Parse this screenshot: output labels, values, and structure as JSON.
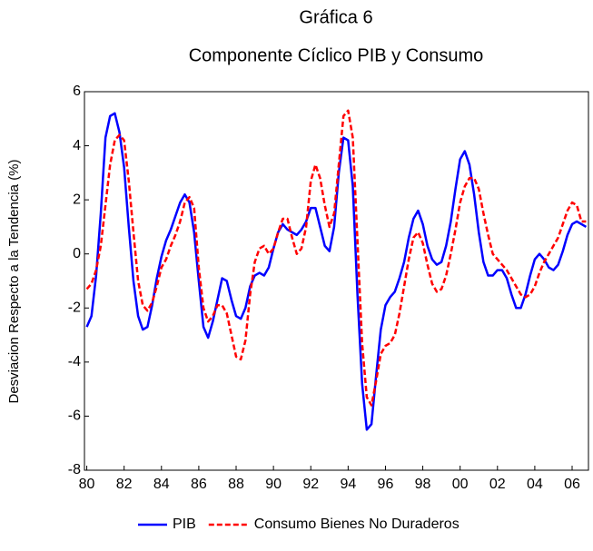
{
  "chart_data": {
    "type": "line",
    "title": "Gráfica 6",
    "subtitle": "Componente Cíclico PIB y Consumo",
    "y_label": "Desviacion Respecto a la Tendencia (%)",
    "categories": [
      "80",
      null,
      null,
      null,
      null,
      null,
      null,
      null,
      "82",
      null,
      null,
      null,
      null,
      null,
      null,
      null,
      "84",
      null,
      null,
      null,
      null,
      null,
      null,
      null,
      "86",
      null,
      null,
      null,
      null,
      null,
      null,
      null,
      "88",
      null,
      null,
      null,
      null,
      null,
      null,
      null,
      "90",
      null,
      null,
      null,
      null,
      null,
      null,
      null,
      "92",
      null,
      null,
      null,
      null,
      null,
      null,
      null,
      "94",
      null,
      null,
      null,
      null,
      null,
      null,
      null,
      "96",
      null,
      null,
      null,
      null,
      null,
      null,
      null,
      "98",
      null,
      null,
      null,
      null,
      null,
      null,
      null,
      "00",
      null,
      null,
      null,
      null,
      null,
      null,
      null,
      "02",
      null,
      null,
      null,
      null,
      null,
      null,
      null,
      "04",
      null,
      null,
      null,
      null,
      null,
      null,
      null,
      "06",
      null,
      null,
      null
    ],
    "series": [
      {
        "name": "PIB",
        "color": "#0000ff",
        "dash": false,
        "values": [
          -2.7,
          -2.3,
          -0.8,
          1.5,
          4.3,
          5.1,
          5.2,
          4.5,
          3.2,
          1.0,
          -1.0,
          -2.3,
          -2.8,
          -2.7,
          -1.9,
          -0.9,
          -0.1,
          0.5,
          0.9,
          1.4,
          1.9,
          2.2,
          1.9,
          0.8,
          -1.0,
          -2.7,
          -3.1,
          -2.5,
          -1.7,
          -0.9,
          -1.0,
          -1.7,
          -2.3,
          -2.4,
          -2.0,
          -1.2,
          -0.8,
          -0.7,
          -0.8,
          -0.5,
          0.2,
          0.8,
          1.1,
          0.9,
          0.8,
          0.7,
          0.9,
          1.2,
          1.7,
          1.7,
          1.0,
          0.3,
          0.1,
          1.0,
          3.0,
          4.3,
          4.2,
          2.5,
          -1.5,
          -4.8,
          -6.5,
          -6.3,
          -4.5,
          -2.8,
          -1.9,
          -1.6,
          -1.4,
          -0.9,
          -0.3,
          0.6,
          1.3,
          1.6,
          1.1,
          0.3,
          -0.2,
          -0.4,
          -0.3,
          0.3,
          1.2,
          2.4,
          3.5,
          3.8,
          3.3,
          2.2,
          0.8,
          -0.3,
          -0.8,
          -0.8,
          -0.6,
          -0.6,
          -0.9,
          -1.5,
          -2.0,
          -2.0,
          -1.5,
          -0.8,
          -0.2,
          0.0,
          -0.2,
          -0.5,
          -0.6,
          -0.4,
          0.1,
          0.7,
          1.1,
          1.2,
          1.1,
          1.0
        ]
      },
      {
        "name": "Consumo Bienes No Duraderos",
        "color": "#ff0000",
        "dash": true,
        "values": [
          -1.3,
          -1.1,
          -0.6,
          0.3,
          1.8,
          3.3,
          4.2,
          4.4,
          4.2,
          2.7,
          0.8,
          -1.0,
          -1.9,
          -2.1,
          -1.8,
          -1.2,
          -0.5,
          -0.2,
          0.3,
          0.7,
          1.2,
          1.9,
          2.1,
          1.7,
          -0.5,
          -2.0,
          -2.5,
          -2.3,
          -1.9,
          -1.9,
          -2.2,
          -3.0,
          -3.8,
          -3.9,
          -3.2,
          -1.5,
          -0.3,
          0.2,
          0.3,
          0.0,
          0.2,
          0.8,
          1.3,
          1.3,
          0.6,
          0.0,
          0.2,
          1.0,
          2.7,
          3.3,
          2.8,
          1.8,
          1.0,
          1.5,
          3.3,
          5.1,
          5.3,
          4.3,
          0.5,
          -3.3,
          -5.3,
          -5.6,
          -4.7,
          -3.7,
          -3.4,
          -3.3,
          -3.0,
          -2.2,
          -1.2,
          -0.2,
          0.6,
          0.8,
          0.4,
          -0.4,
          -1.1,
          -1.4,
          -1.3,
          -0.8,
          0.0,
          0.9,
          1.9,
          2.5,
          2.8,
          2.8,
          2.4,
          1.5,
          0.7,
          0.0,
          -0.2,
          -0.4,
          -0.6,
          -0.9,
          -1.2,
          -1.5,
          -1.6,
          -1.5,
          -1.2,
          -0.7,
          -0.3,
          0.0,
          0.3,
          0.6,
          1.1,
          1.6,
          1.9,
          1.8,
          1.2,
          1.2
        ]
      }
    ],
    "ylim": [
      -8,
      6
    ],
    "yticks": [
      -8,
      -6,
      -4,
      -2,
      0,
      2,
      4,
      6
    ],
    "grid": false,
    "legend": "bottom"
  }
}
